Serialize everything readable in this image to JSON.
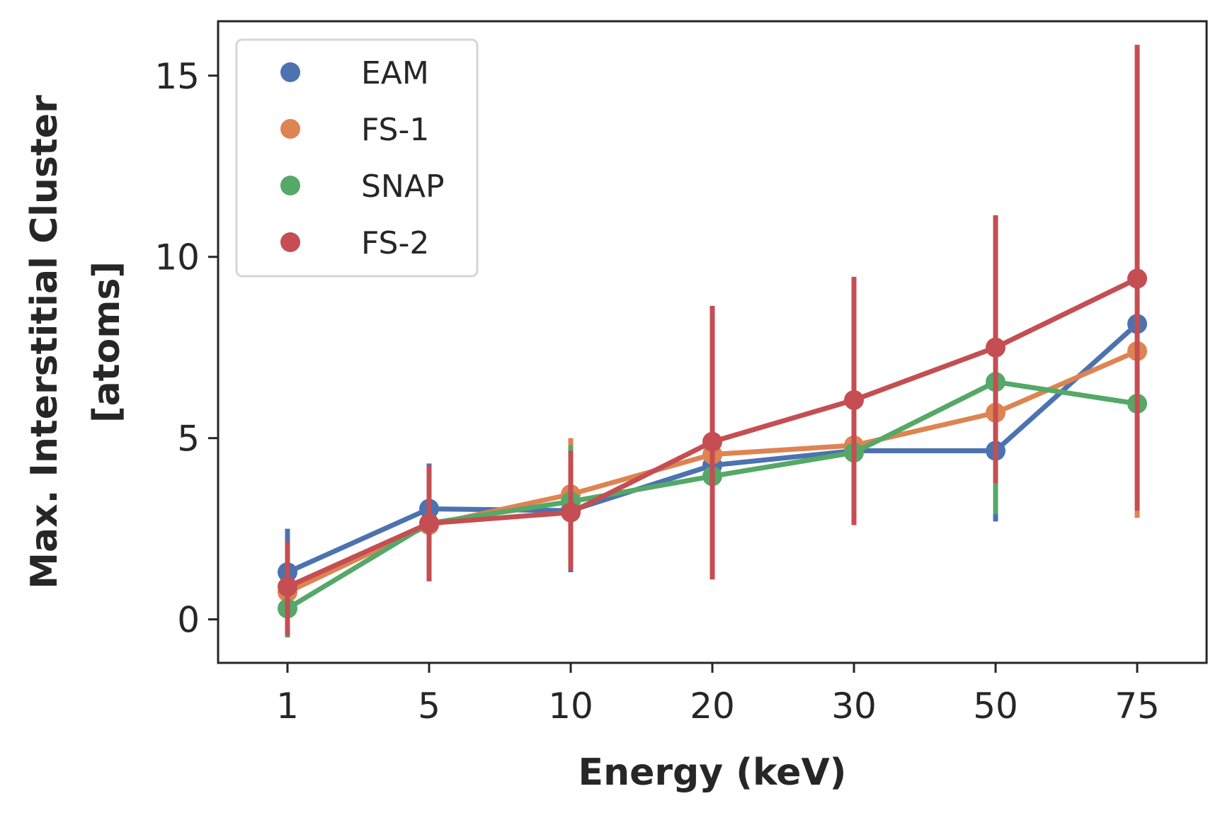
{
  "chart_data": {
    "type": "line",
    "title": "",
    "xlabel": "Energy (keV)",
    "ylabel_lines": [
      "Max. Interstitial Cluster",
      "[atoms]"
    ],
    "categories": [
      "1",
      "5",
      "10",
      "20",
      "30",
      "50",
      "75"
    ],
    "ylim": [
      -1.2,
      16.5
    ],
    "yticks": [
      0,
      5,
      10,
      15
    ],
    "ytick_labels": [
      "0",
      "5",
      "10",
      "15"
    ],
    "legend_position": "top-left",
    "series": [
      {
        "name": "EAM",
        "color": "#4c72b0",
        "values": [
          1.3,
          3.05,
          3.0,
          4.25,
          4.65,
          4.65,
          8.15
        ],
        "err_low": [
          0.5,
          2.5,
          1.3,
          1.2,
          2.6,
          2.7,
          3.0
        ],
        "err_high": [
          2.5,
          4.3,
          4.6,
          7.6,
          7.8,
          7.4,
          13.5
        ]
      },
      {
        "name": "FS-1",
        "color": "#dd8452",
        "values": [
          0.75,
          2.6,
          3.45,
          4.55,
          4.8,
          5.7,
          7.4
        ],
        "err_low": [
          0.1,
          1.6,
          1.8,
          1.6,
          2.8,
          3.2,
          2.8
        ],
        "err_high": [
          1.6,
          3.9,
          5.0,
          7.8,
          8.0,
          9.0,
          13.0
        ]
      },
      {
        "name": "SNAP",
        "color": "#55a868",
        "values": [
          0.3,
          2.65,
          3.25,
          3.95,
          4.6,
          6.55,
          5.95
        ],
        "err_low": [
          -0.5,
          1.6,
          1.6,
          1.4,
          2.6,
          2.9,
          3.2
        ],
        "err_high": [
          1.2,
          3.9,
          4.8,
          7.2,
          7.6,
          10.3,
          9.5
        ]
      },
      {
        "name": "FS-2",
        "color": "#c44e52",
        "values": [
          0.9,
          2.65,
          2.95,
          4.9,
          6.05,
          7.5,
          9.4
        ],
        "err_low": [
          -0.45,
          1.05,
          1.35,
          1.1,
          2.6,
          3.75,
          3.0
        ],
        "err_high": [
          2.15,
          4.25,
          4.65,
          8.65,
          9.45,
          11.15,
          15.85
        ]
      }
    ]
  }
}
